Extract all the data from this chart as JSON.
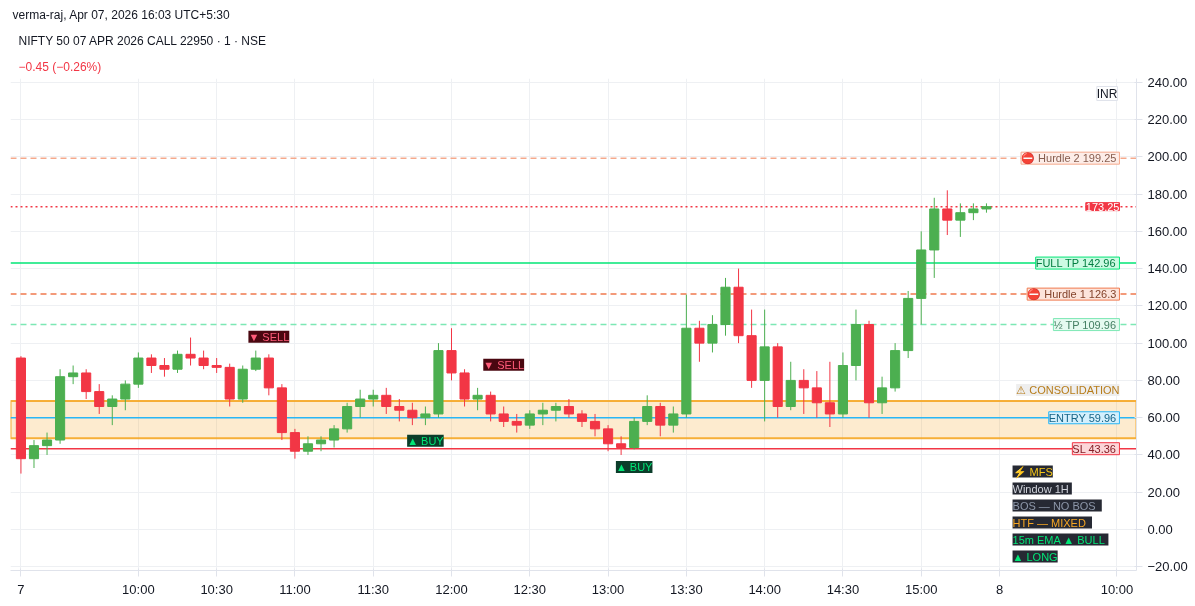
{
  "chart_data": {
    "type": "candlestick",
    "title": "NIFTY 50 07 APR 2026 CALL 22950 · 1 · NSE",
    "subtitle": "−0.45 (−0.26%)",
    "categories": [
      "7",
      null,
      null,
      null,
      null,
      null,
      null,
      null,
      null,
      "10:00",
      null,
      null,
      null,
      null,
      null,
      "10:30",
      null,
      null,
      null,
      null,
      null,
      "11:00",
      null,
      null,
      null,
      null,
      null,
      "11:30",
      null,
      null,
      null,
      null,
      null,
      "12:00",
      null,
      null,
      null,
      null,
      null,
      "12:30",
      null,
      null,
      null,
      null,
      null,
      "13:00",
      null,
      null,
      null,
      null,
      null,
      "13:30",
      null,
      null,
      null,
      null,
      null,
      "14:00",
      null,
      null,
      null,
      null,
      null,
      "14:30",
      null,
      null,
      null,
      null,
      null,
      "15:00",
      null,
      null,
      null,
      null,
      null,
      "8",
      null,
      null,
      null,
      null,
      null,
      null,
      null,
      null,
      "10:00"
    ],
    "ohlc": [
      [
        92,
        93,
        30,
        38
      ],
      [
        38,
        48,
        33,
        45
      ],
      [
        45,
        52,
        40,
        48
      ],
      [
        48,
        86,
        46,
        82
      ],
      [
        82,
        88,
        78,
        84
      ],
      [
        84,
        86,
        70,
        74
      ],
      [
        74,
        78,
        62,
        66
      ],
      [
        66,
        72,
        56,
        70
      ],
      [
        70,
        80,
        64,
        78
      ],
      [
        78,
        95,
        76,
        92
      ],
      [
        92,
        94,
        84,
        88
      ],
      [
        88,
        92,
        82,
        86
      ],
      [
        86,
        96,
        84,
        94
      ],
      [
        94,
        103,
        88,
        92
      ],
      [
        92,
        96,
        86,
        88
      ],
      [
        88,
        92,
        84,
        87
      ],
      [
        87,
        89,
        66,
        70
      ],
      [
        70,
        88,
        68,
        86
      ],
      [
        86,
        96,
        85,
        92
      ],
      [
        92,
        94,
        72,
        76
      ],
      [
        76,
        78,
        48,
        52
      ],
      [
        52,
        54,
        38,
        42
      ],
      [
        42,
        50,
        40,
        46
      ],
      [
        46,
        50,
        42,
        48
      ],
      [
        48,
        56,
        44,
        54
      ],
      [
        54,
        68,
        52,
        66
      ],
      [
        66,
        75,
        60,
        70
      ],
      [
        70,
        75,
        66,
        72
      ],
      [
        72,
        76,
        62,
        66
      ],
      [
        66,
        70,
        58,
        64
      ],
      [
        64,
        68,
        56,
        60
      ],
      [
        60,
        66,
        56,
        62
      ],
      [
        62,
        100,
        60,
        96
      ],
      [
        96,
        108,
        80,
        84
      ],
      [
        84,
        86,
        66,
        70
      ],
      [
        70,
        76,
        64,
        72
      ],
      [
        72,
        74,
        58,
        62
      ],
      [
        62,
        66,
        55,
        58
      ],
      [
        58,
        62,
        52,
        56
      ],
      [
        56,
        64,
        54,
        62
      ],
      [
        62,
        68,
        56,
        64
      ],
      [
        64,
        68,
        58,
        66
      ],
      [
        66,
        70,
        60,
        62
      ],
      [
        62,
        64,
        55,
        58
      ],
      [
        58,
        62,
        50,
        54
      ],
      [
        54,
        56,
        42,
        46
      ],
      [
        46,
        50,
        40,
        44
      ],
      [
        44,
        60,
        43,
        58
      ],
      [
        58,
        72,
        56,
        66
      ],
      [
        66,
        68,
        50,
        56
      ],
      [
        56,
        66,
        52,
        62
      ],
      [
        62,
        126,
        60,
        108
      ],
      [
        108,
        112,
        90,
        100
      ],
      [
        100,
        115,
        95,
        110
      ],
      [
        110,
        135,
        104,
        130
      ],
      [
        130,
        140,
        100,
        104
      ],
      [
        104,
        118,
        76,
        80
      ],
      [
        80,
        118,
        58,
        98
      ],
      [
        98,
        100,
        60,
        66
      ],
      [
        66,
        90,
        64,
        80
      ],
      [
        80,
        86,
        62,
        76
      ],
      [
        76,
        85,
        60,
        68
      ],
      [
        68,
        90,
        55,
        62
      ],
      [
        62,
        95,
        60,
        88
      ],
      [
        88,
        118,
        80,
        110
      ],
      [
        110,
        112,
        60,
        68
      ],
      [
        68,
        82,
        62,
        76
      ],
      [
        76,
        100,
        74,
        96
      ],
      [
        96,
        128,
        92,
        124
      ],
      [
        124,
        160,
        110,
        150
      ],
      [
        150,
        178,
        135,
        172
      ],
      [
        172,
        182,
        158,
        166
      ],
      [
        166,
        175,
        157,
        170
      ],
      [
        170,
        175,
        166,
        172
      ],
      [
        172,
        175,
        170,
        173.25
      ],
      null,
      null,
      null,
      null,
      null,
      null,
      null,
      null,
      null,
      null
    ],
    "colors": [
      "#f23645",
      "#4caf50",
      "#4caf50",
      "#4caf50",
      "#4caf50",
      "#f23645",
      "#f23645",
      "#4caf50",
      "#4caf50",
      "#4caf50",
      "#f23645",
      "#f23645",
      "#4caf50",
      "#f23645",
      "#f23645",
      "#f23645",
      "#f23645",
      "#4caf50",
      "#4caf50",
      "#f23645",
      "#f23645",
      "#f23645",
      "#4caf50",
      "#4caf50",
      "#4caf50",
      "#4caf50",
      "#4caf50",
      "#4caf50",
      "#f23645",
      "#f23645",
      "#f23645",
      "#4caf50",
      "#4caf50",
      "#f23645",
      "#f23645",
      "#4caf50",
      "#f23645",
      "#f23645",
      "#f23645",
      "#4caf50",
      "#4caf50",
      "#4caf50",
      "#f23645",
      "#f23645",
      "#f23645",
      "#f23645",
      "#f23645",
      "#4caf50",
      "#4caf50",
      "#f23645",
      "#4caf50",
      "#4caf50",
      "#f23645",
      "#4caf50",
      "#4caf50",
      "#f23645",
      "#f23645",
      "#4caf50",
      "#f23645",
      "#4caf50",
      "#f23645",
      "#f23645",
      "#f23645",
      "#4caf50",
      "#4caf50",
      "#f23645",
      "#4caf50",
      "#4caf50",
      "#4caf50",
      "#4caf50",
      "#4caf50",
      "#f23645",
      "#4caf50",
      "#4caf50",
      "#4caf50",
      null,
      null,
      null,
      null,
      null,
      null,
      null,
      null,
      null,
      null
    ],
    "ylim": [
      -22,
      242
    ],
    "yticks": [
      {
        "value": -20,
        "label": "−20.00"
      },
      {
        "value": 0,
        "label": "0.00"
      },
      {
        "value": 20,
        "label": "20.00"
      },
      {
        "value": 40,
        "label": "40.00"
      },
      {
        "value": 60,
        "label": "60.00"
      },
      {
        "value": 80,
        "label": "80.00"
      },
      {
        "value": 100,
        "label": "100.00"
      },
      {
        "value": 120,
        "label": "120.00"
      },
      {
        "value": 140,
        "label": "140.00"
      },
      {
        "value": 160,
        "label": "160.00"
      },
      {
        "value": 180,
        "label": "180.00"
      },
      {
        "value": 200,
        "label": "200.00"
      },
      {
        "value": 220,
        "label": "220.00"
      },
      {
        "value": 240,
        "label": "240.00"
      }
    ],
    "grid": true,
    "ref_lines": [
      {
        "axis": "y",
        "value": 199.25,
        "label": "⛔ Hurdle 2  199.25",
        "color": "#f5a98c",
        "line_style": "dashed"
      },
      {
        "axis": "y",
        "value": 173.25,
        "label": "173.25",
        "color": "#f23645",
        "line_style": "dotted"
      },
      {
        "axis": "y",
        "value": 142.96,
        "label": "FULL TP  142.96",
        "color": "#00e676",
        "line_style": "solid"
      },
      {
        "axis": "y",
        "value": 126.3,
        "label": "⛔ Hurdle 1  126.3",
        "color": "#f07a4f",
        "line_style": "dashed"
      },
      {
        "axis": "y",
        "value": 109.96,
        "label": "½ TP  109.96",
        "color": "#7de8b5",
        "line_style": "dashed"
      },
      {
        "axis": "y",
        "value": 59.96,
        "label": "ENTRY  59.96",
        "color": "#29b6f6",
        "line_style": "solid"
      },
      {
        "axis": "y",
        "value": 43.36,
        "label": "SL  43.36",
        "color": "#f23645",
        "line_style": "solid"
      }
    ],
    "bands": [
      {
        "axis": "y",
        "from": 49,
        "to": 69,
        "label": "⚠ CONSOLIDATION",
        "color": "#f5a623"
      }
    ],
    "annotations": [
      "verma-raj, Apr 07, 2026 16:03 UTC+5:30",
      "INR",
      "⚡ MFS",
      "Window  1H",
      "BOS   — NO BOS",
      "HTF   — MIXED",
      "15m EMA  ▲ BULL",
      "▲ LONG",
      "▼ SELL",
      "▼ SELL",
      "▲ BUY",
      "▲ BUY"
    ]
  }
}
